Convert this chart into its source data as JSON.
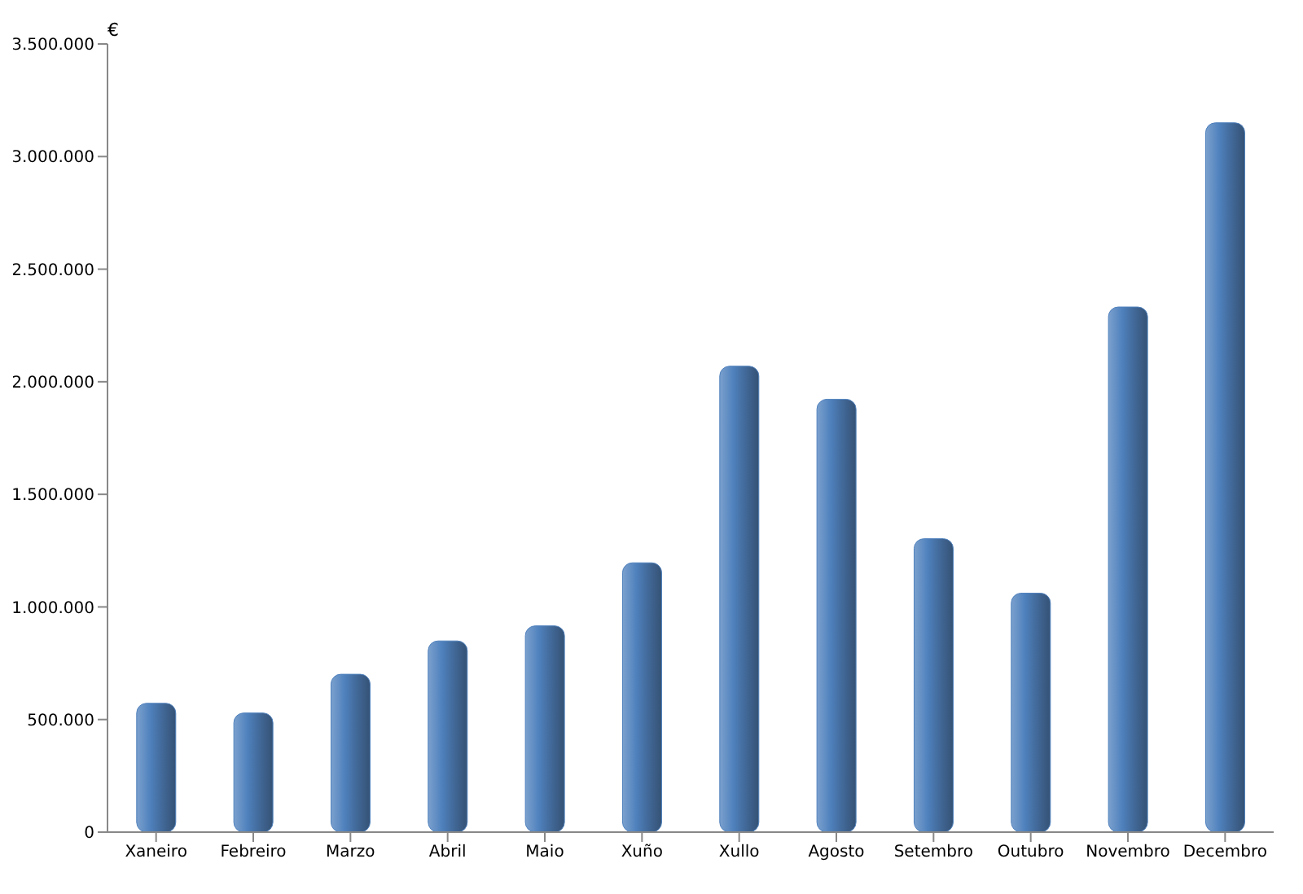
{
  "chart_data": {
    "type": "bar",
    "ylabel": "€",
    "categories": [
      "Xaneiro",
      "Febreiro",
      "Marzo",
      "Abril",
      "Maio",
      "Xuño",
      "Xullo",
      "Agosto",
      "Setembro",
      "Outubro",
      "Novembro",
      "Decembro"
    ],
    "values": [
      572000,
      529000,
      701000,
      849000,
      916000,
      1196000,
      2069000,
      1922000,
      1303000,
      1061000,
      2332000,
      3150000
    ],
    "color": "#4f81bd",
    "ylim": [
      0,
      3500000
    ],
    "yticks": [
      0,
      {
        "value": 500000,
        "label": "500.000"
      },
      {
        "value": 1000000,
        "label": "1.000.000"
      },
      {
        "value": 1500000,
        "label": "1.500.000"
      },
      {
        "value": 2000000,
        "label": "2.000.000"
      },
      {
        "value": 2500000,
        "label": "2.500.000"
      },
      {
        "value": 3000000,
        "label": "3.000.000"
      },
      {
        "value": 3500000,
        "label": "3.500.000"
      }
    ],
    "grid": false,
    "legend": false
  }
}
